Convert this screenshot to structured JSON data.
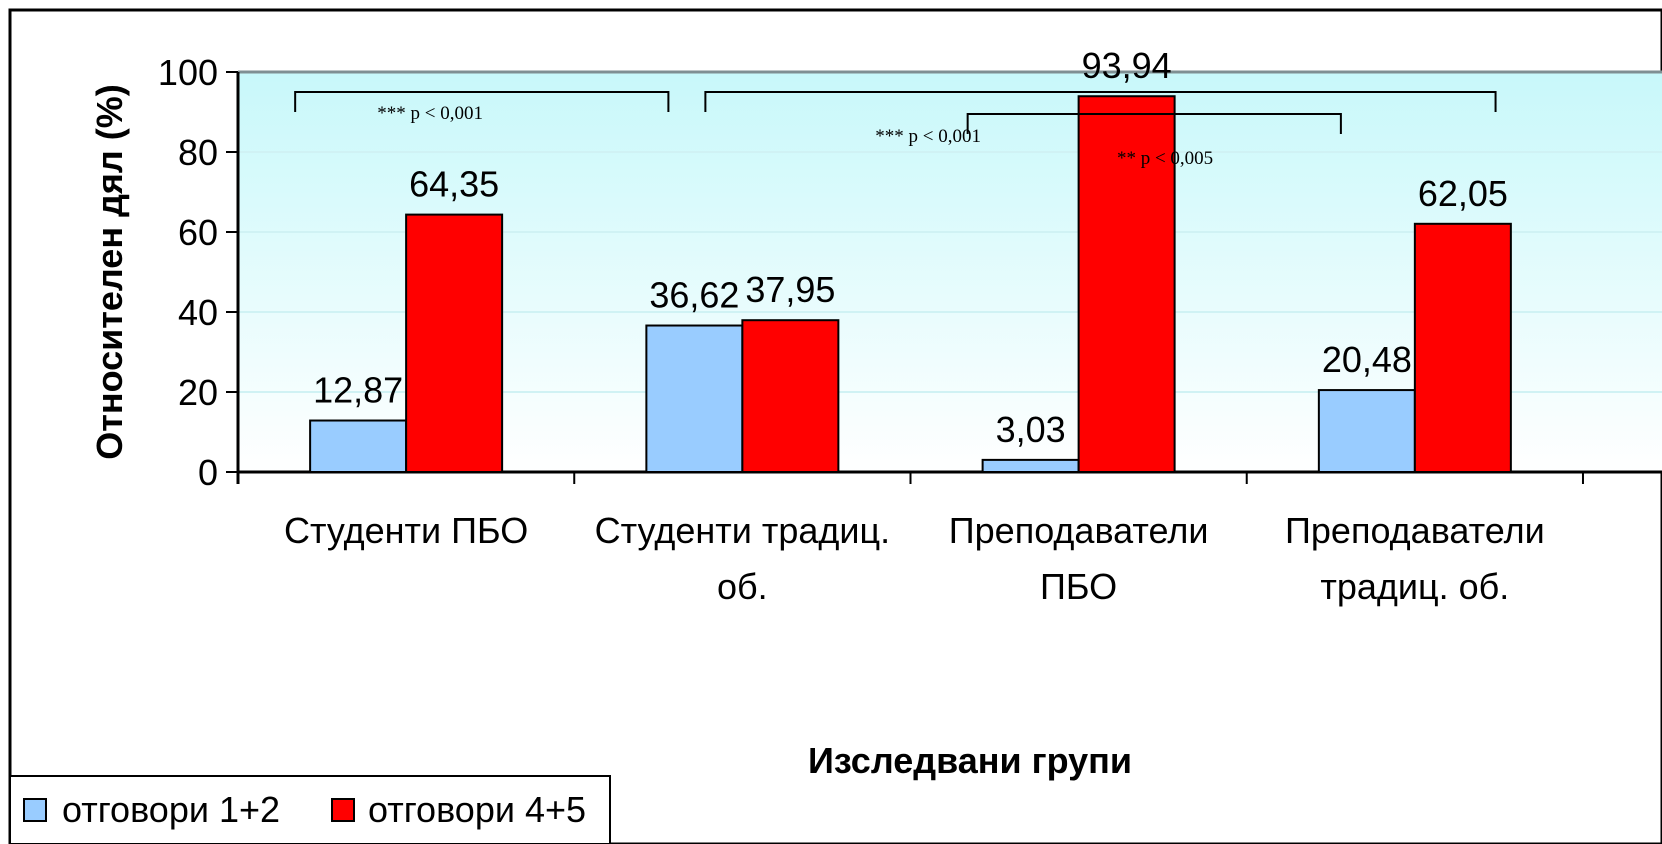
{
  "chart_data": {
    "type": "bar",
    "categories": [
      [
        "Студенти ПБО"
      ],
      [
        "Студенти традиц.",
        "об."
      ],
      [
        "Преподаватели",
        "ПБО"
      ],
      [
        "Преподаватели",
        "традиц. об."
      ]
    ],
    "series": [
      {
        "name": "отговори 1+2",
        "color": "#99CCFF",
        "values": [
          12.87,
          36.62,
          3.03,
          20.48
        ],
        "labels": [
          "12,87",
          "36,62",
          "3,03",
          "20,48"
        ]
      },
      {
        "name": "отговори 4+5",
        "color": "#FF0000",
        "values": [
          64.35,
          37.95,
          93.94,
          62.05
        ],
        "labels": [
          "64,35",
          "37,95",
          "93,94",
          "62,05"
        ]
      }
    ],
    "xlabel": "Изследвани групи",
    "ylabel": "Относителен дял (%)",
    "ylim": [
      0,
      100
    ],
    "yticks": [
      0,
      20,
      40,
      60,
      80,
      100
    ],
    "grid": true,
    "legend": "bottom-left",
    "annotations": [
      {
        "text": "*** p < 0,001",
        "from_category": 0,
        "to_category": 1
      },
      {
        "text": "*** p < 0,001",
        "from_category": 1,
        "to_category": 3
      },
      {
        "text": "** p < 0,005",
        "from_category": 2,
        "to_category": 3
      }
    ]
  }
}
